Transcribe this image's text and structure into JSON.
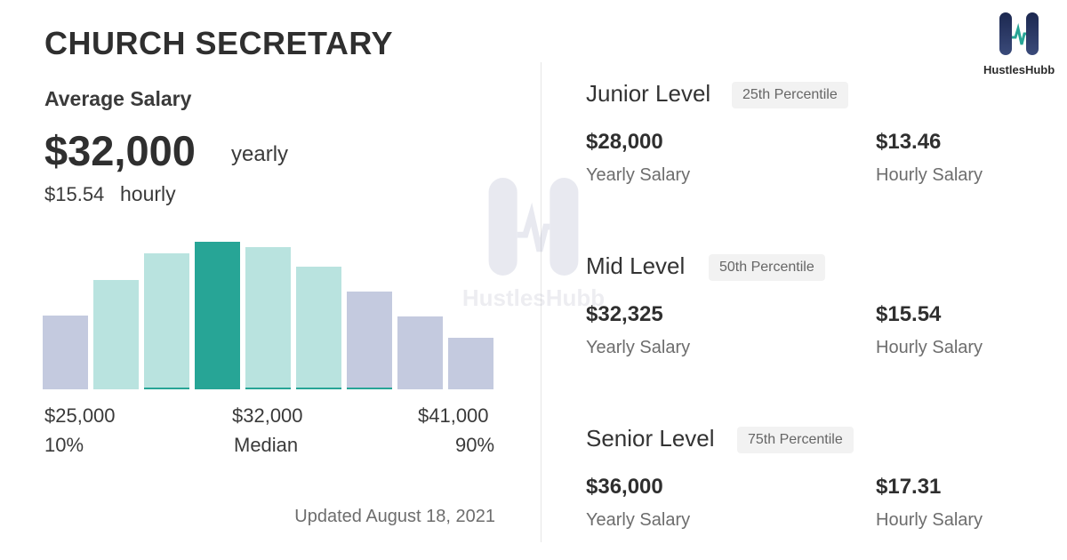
{
  "title": "CHURCH SECRETARY",
  "average": {
    "label": "Average Salary",
    "yearly": "$32,000",
    "yearly_unit": "yearly",
    "hourly": "$15.54",
    "hourly_unit": "hourly"
  },
  "chart_data": {
    "type": "bar",
    "values": [
      83,
      123,
      153,
      166,
      160,
      138,
      110,
      82,
      58
    ],
    "highlight_index": 3,
    "colors": {
      "outer": "#c4cadf",
      "inner": "#b9e3df",
      "median": "#27a596",
      "underline": "#27a596"
    },
    "underline_indices": [
      2,
      4,
      5,
      6
    ],
    "labels": {
      "low_value": "$25,000",
      "low_pct": "10%",
      "median_value": "$32,000",
      "median_label": "Median",
      "high_value": "$41,000",
      "high_pct": "90%"
    }
  },
  "updated": "Updated August 18, 2021",
  "levels": [
    {
      "name": "Junior Level",
      "percentile": "25th Percentile",
      "yearly": "$28,000",
      "yearly_caption": "Yearly Salary",
      "hourly": "$13.46",
      "hourly_caption": "Hourly Salary"
    },
    {
      "name": "Mid Level",
      "percentile": "50th Percentile",
      "yearly": "$32,325",
      "yearly_caption": "Yearly Salary",
      "hourly": "$15.54",
      "hourly_caption": "Hourly Salary"
    },
    {
      "name": "Senior Level",
      "percentile": "75th Percentile",
      "yearly": "$36,000",
      "yearly_caption": "Yearly Salary",
      "hourly": "$17.31",
      "hourly_caption": "Hourly Salary"
    }
  ],
  "brand": {
    "name": "HustlesHubb",
    "icon": "hustleshubb-logo-icon",
    "color": "#1c2850"
  },
  "watermark": {
    "text": "HustlesHubb",
    "icon": "hustleshubb-watermark-icon"
  }
}
